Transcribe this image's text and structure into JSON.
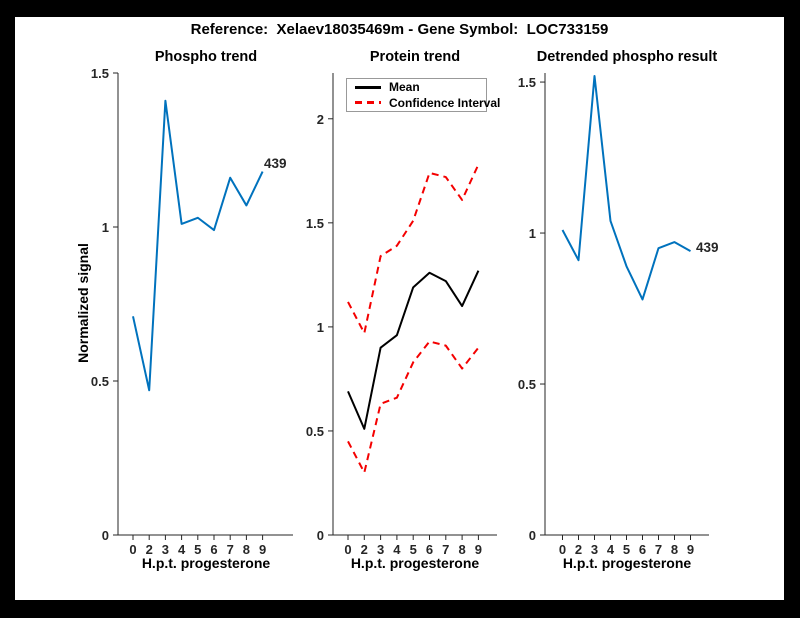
{
  "figure": {
    "title": "Reference:  Xelaev18035469m - Gene Symbol:  LOC733159"
  },
  "axes_shared": {
    "xlabel": "H.p.t. progesterone",
    "ylabel": "Normalized signal",
    "xticklabels": [
      "0",
      "2",
      "3",
      "4",
      "5",
      "6",
      "7",
      "8",
      "9"
    ]
  },
  "colors": {
    "line_blue": "#0072bd",
    "mean_black": "#000000",
    "ci_red": "#f40000",
    "axis": "#262626",
    "frame": "#000000",
    "background": "#ffffff"
  },
  "chart_data": [
    {
      "type": "line",
      "title": "Phospho trend",
      "xlabel": "H.p.t. progesterone",
      "ylabel": "Normalized signal",
      "x": [
        0,
        2,
        3,
        4,
        5,
        6,
        7,
        8,
        9
      ],
      "yticks": [
        0,
        0.5,
        1,
        1.5
      ],
      "ylim": [
        0,
        1.5
      ],
      "grid": false,
      "legend": null,
      "end_label": "439",
      "series": [
        {
          "name": "439",
          "color": "#0072bd",
          "dash": false,
          "values": [
            0.71,
            0.47,
            1.41,
            1.01,
            1.03,
            0.99,
            1.16,
            1.07,
            1.18
          ]
        }
      ]
    },
    {
      "type": "line",
      "title": "Protein trend",
      "xlabel": "H.p.t. progesterone",
      "ylabel": "",
      "x": [
        0,
        2,
        3,
        4,
        5,
        6,
        7,
        8,
        9
      ],
      "yticks": [
        0,
        0.5,
        1,
        1.5,
        2
      ],
      "ylim": [
        0,
        2.22
      ],
      "grid": false,
      "legend": [
        "Mean",
        "Confidence Interval"
      ],
      "legend_position": "top-left-inside",
      "end_label": null,
      "series": [
        {
          "name": "Confidence Interval upper",
          "color": "#f40000",
          "dash": true,
          "values": [
            1.12,
            0.97,
            1.34,
            1.39,
            1.51,
            1.74,
            1.72,
            1.61,
            1.78
          ]
        },
        {
          "name": "Confidence Interval lower",
          "color": "#f40000",
          "dash": true,
          "values": [
            0.45,
            0.3,
            0.63,
            0.66,
            0.83,
            0.93,
            0.91,
            0.8,
            0.9
          ]
        },
        {
          "name": "Mean",
          "color": "#000000",
          "dash": false,
          "values": [
            0.69,
            0.51,
            0.9,
            0.96,
            1.19,
            1.26,
            1.22,
            1.1,
            1.27
          ]
        }
      ]
    },
    {
      "type": "line",
      "title": "Detrended phospho result",
      "xlabel": "H.p.t. progesterone",
      "ylabel": "",
      "x": [
        0,
        2,
        3,
        4,
        5,
        6,
        7,
        8,
        9
      ],
      "yticks": [
        0,
        0.5,
        1,
        1.5
      ],
      "ylim": [
        0,
        1.53
      ],
      "grid": false,
      "legend": null,
      "end_label": "439",
      "series": [
        {
          "name": "439",
          "color": "#0072bd",
          "dash": false,
          "values": [
            1.01,
            0.91,
            1.52,
            1.04,
            0.89,
            0.78,
            0.95,
            0.97,
            0.94
          ]
        }
      ]
    }
  ]
}
